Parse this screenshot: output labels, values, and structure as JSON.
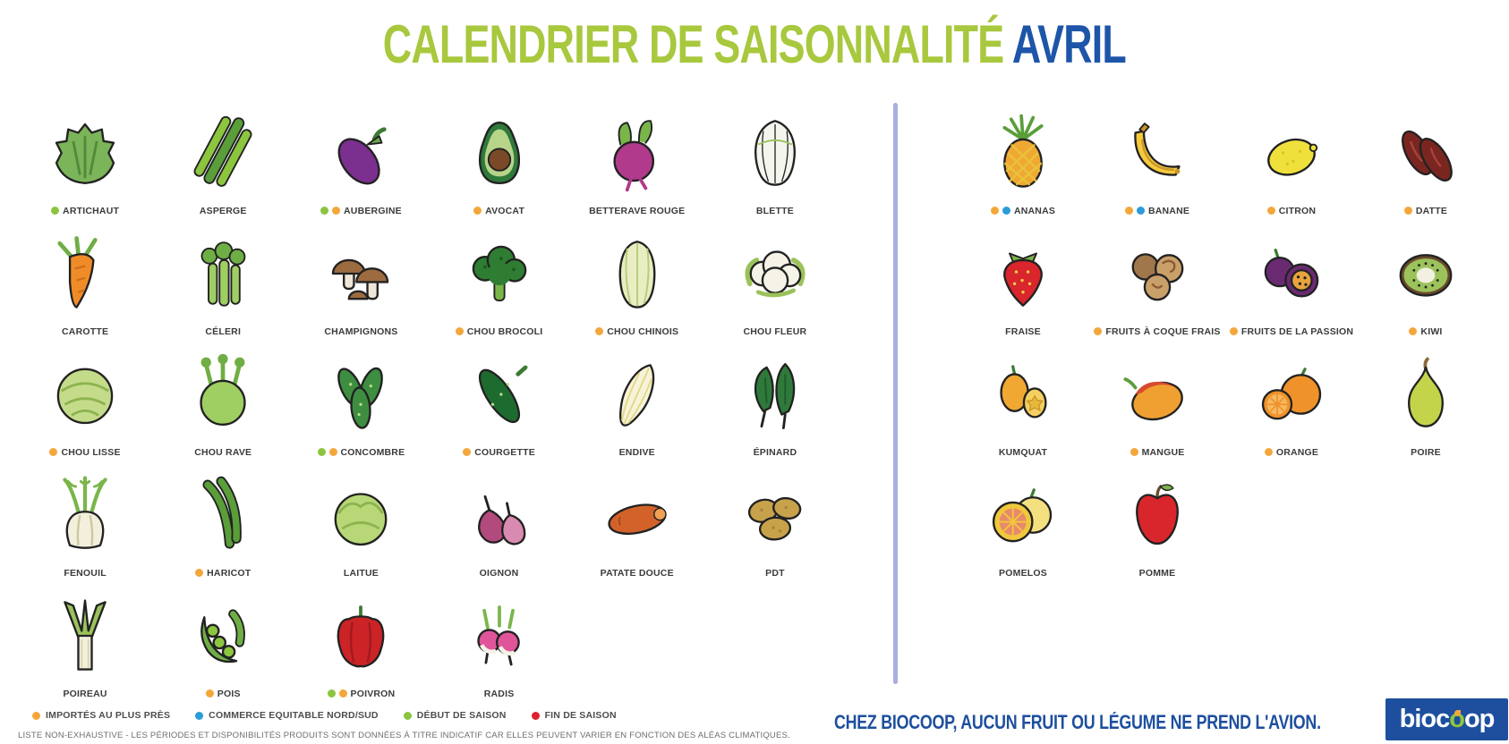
{
  "title": {
    "main": "CALENDRIER DE SAISONNALITÉ",
    "month": "AVRIL"
  },
  "colors": {
    "title_green": "#a8c83e",
    "title_blue": "#1d55a8",
    "divider": "#a9aede",
    "slogan_blue": "#1d4f9e",
    "logo_bg": "#1d4f9e",
    "logo_green": "#8dc63f",
    "dots": {
      "orange": "#f3a73a",
      "blue": "#2b9cd8",
      "green": "#8bc53f",
      "red": "#e0202e"
    }
  },
  "vegetables": [
    {
      "label": "ARTICHAUT",
      "icon": "artichoke-icon",
      "shape": "artichoke",
      "colors": [
        "#7cb45a",
        "#4e8a3a"
      ],
      "dots": [
        "green"
      ]
    },
    {
      "label": "ASPERGE",
      "icon": "asparagus-icon",
      "shape": "asparagus",
      "colors": [
        "#8cc63f",
        "#5a9e3a"
      ],
      "dots": []
    },
    {
      "label": "AUBERGINE",
      "icon": "eggplant-icon",
      "shape": "aubergine",
      "colors": [
        "#7b2f8f",
        "#6aa84f"
      ],
      "dots": [
        "green",
        "orange"
      ]
    },
    {
      "label": "AVOCAT",
      "icon": "avocado-icon",
      "shape": "avocado",
      "colors": [
        "#2f7a3b",
        "#b7d489",
        "#7a4a28"
      ],
      "dots": [
        "orange"
      ]
    },
    {
      "label": "BETTERAVE ROUGE",
      "icon": "beetroot-icon",
      "shape": "beet",
      "colors": [
        "#b13a8c",
        "#7ab54a"
      ],
      "dots": []
    },
    {
      "label": "BLETTE",
      "icon": "chard-icon",
      "shape": "chard",
      "colors": [
        "#f4f6ee",
        "#9bc25b"
      ],
      "dots": []
    },
    {
      "label": "CAROTTE",
      "icon": "carrot-icon",
      "shape": "carrot",
      "colors": [
        "#f08c28",
        "#6fae45"
      ],
      "dots": []
    },
    {
      "label": "CÉLERI",
      "icon": "celery-icon",
      "shape": "celery",
      "colors": [
        "#9fce63",
        "#6fae45"
      ],
      "dots": []
    },
    {
      "label": "CHAMPIGNONS",
      "icon": "mushrooms-icon",
      "shape": "mushrooms",
      "colors": [
        "#9c6b3f",
        "#f0e6d8"
      ],
      "dots": []
    },
    {
      "label": "CHOU BROCOLI",
      "icon": "broccoli-icon",
      "shape": "broccoli",
      "colors": [
        "#2e7d32",
        "#7ab54a"
      ],
      "dots": [
        "orange"
      ]
    },
    {
      "label": "CHOU CHINOIS",
      "icon": "chinese-cabbage-icon",
      "shape": "chouchinois",
      "colors": [
        "#e8eec2",
        "#b5cc7a"
      ],
      "dots": [
        "orange"
      ]
    },
    {
      "label": "CHOU FLEUR",
      "icon": "cauliflower-icon",
      "shape": "choufleur",
      "colors": [
        "#f5f3e8",
        "#9bc25b"
      ],
      "dots": []
    },
    {
      "label": "CHOU LISSE",
      "icon": "smooth-cabbage-icon",
      "shape": "cabbage",
      "colors": [
        "#c4dc8a",
        "#8db34f"
      ],
      "dots": [
        "orange"
      ]
    },
    {
      "label": "CHOU RAVE",
      "icon": "kohlrabi-icon",
      "shape": "chourave",
      "colors": [
        "#9fce63",
        "#6fae45"
      ],
      "dots": []
    },
    {
      "label": "CONCOMBRE",
      "icon": "cucumber-icon",
      "shape": "concombre",
      "colors": [
        "#3e8e41",
        "#bde08a"
      ],
      "dots": [
        "green",
        "orange"
      ]
    },
    {
      "label": "COURGETTE",
      "icon": "zucchini-icon",
      "shape": "courgette",
      "colors": [
        "#1e6b30",
        "#bde08a"
      ],
      "dots": [
        "orange"
      ]
    },
    {
      "label": "ENDIVE",
      "icon": "endive-icon",
      "shape": "endive",
      "colors": [
        "#f7f3da",
        "#e3d984"
      ],
      "dots": []
    },
    {
      "label": "ÉPINARD",
      "icon": "spinach-icon",
      "shape": "epinard",
      "colors": [
        "#2f7a3b",
        "#1e5a2a"
      ],
      "dots": []
    },
    {
      "label": "FENOUIL",
      "icon": "fennel-icon",
      "shape": "fenouil",
      "colors": [
        "#f2efdd",
        "#7ab54a"
      ],
      "dots": []
    },
    {
      "label": "HARICOT",
      "icon": "green-bean-icon",
      "shape": "haricot",
      "colors": [
        "#5a9e3a"
      ],
      "dots": [
        "orange"
      ]
    },
    {
      "label": "LAITUE",
      "icon": "lettuce-icon",
      "shape": "laitue",
      "colors": [
        "#b8d878",
        "#8db34f"
      ],
      "dots": []
    },
    {
      "label": "OIGNON",
      "icon": "onion-icon",
      "shape": "oignon",
      "colors": [
        "#b34a7d",
        "#d98ab0"
      ],
      "dots": []
    },
    {
      "label": "PATATE DOUCE",
      "icon": "sweet-potato-icon",
      "shape": "patatedouce",
      "colors": [
        "#d2622a",
        "#a34a1e"
      ],
      "dots": []
    },
    {
      "label": "PDT",
      "icon": "potato-icon",
      "shape": "pdt",
      "colors": [
        "#c8a24b",
        "#a88038"
      ],
      "dots": []
    },
    {
      "label": "POIREAU",
      "icon": "leek-icon",
      "shape": "poireau",
      "colors": [
        "#f2efdd",
        "#9bc25b"
      ],
      "dots": []
    },
    {
      "label": "POIS",
      "icon": "peas-icon",
      "shape": "pois",
      "colors": [
        "#6fae45",
        "#8cc63f"
      ],
      "dots": [
        "orange"
      ]
    },
    {
      "label": "POIVRON",
      "icon": "bell-pepper-icon",
      "shape": "poivron",
      "colors": [
        "#cc2327",
        "#3d7a33"
      ],
      "dots": [
        "green",
        "orange"
      ]
    },
    {
      "label": "RADIS",
      "icon": "radish-icon",
      "shape": "radis",
      "colors": [
        "#e0559a",
        "#f5f2e8",
        "#7ab54a"
      ],
      "dots": []
    }
  ],
  "fruits": [
    {
      "label": "ANANAS",
      "icon": "pineapple-icon",
      "shape": "ananas",
      "colors": [
        "#f0a832",
        "#e8c23c",
        "#5a9e3a"
      ],
      "dots": [
        "orange",
        "blue"
      ]
    },
    {
      "label": "BANANE",
      "icon": "banana-icon",
      "shape": "banane",
      "colors": [
        "#f5c93c",
        "#c9962a"
      ],
      "dots": [
        "orange",
        "blue"
      ]
    },
    {
      "label": "CITRON",
      "icon": "lemon-icon",
      "shape": "citron",
      "colors": [
        "#f0e03c",
        "#d8c428"
      ],
      "dots": [
        "orange"
      ]
    },
    {
      "label": "DATTE",
      "icon": "date-icon",
      "shape": "datte",
      "colors": [
        "#7a2620",
        "#a8433a"
      ],
      "dots": [
        "orange"
      ]
    },
    {
      "label": "FRAISE",
      "icon": "strawberry-icon",
      "shape": "fraise",
      "colors": [
        "#d8262c",
        "#7ab54a",
        "#f0d048"
      ],
      "dots": []
    },
    {
      "label": "FRUITS À COQUE FRAIS",
      "icon": "nuts-icon",
      "shape": "nuts",
      "colors": [
        "#a0764b",
        "#c9a06a",
        "#8a5a34"
      ],
      "dots": [
        "orange"
      ]
    },
    {
      "label": "FRUITS DE LA PASSION",
      "icon": "passion-fruit-icon",
      "shape": "passion",
      "colors": [
        "#6a2a72",
        "#e8a33c"
      ],
      "dots": [
        "orange"
      ]
    },
    {
      "label": "KIWI",
      "icon": "kiwi-icon",
      "shape": "kiwi",
      "colors": [
        "#6a4a2a",
        "#9bc25b",
        "#f2f0e0"
      ],
      "dots": [
        "orange"
      ]
    },
    {
      "label": "KUMQUAT",
      "icon": "kumquat-icon",
      "shape": "kumquat",
      "colors": [
        "#f0a832",
        "#f5d060"
      ],
      "dots": []
    },
    {
      "label": "MANGUE",
      "icon": "mango-icon",
      "shape": "mangue",
      "colors": [
        "#f0a030",
        "#d84a30",
        "#5a9e3a"
      ],
      "dots": [
        "orange"
      ]
    },
    {
      "label": "ORANGE",
      "icon": "orange-icon",
      "shape": "orange",
      "colors": [
        "#f0922a",
        "#f5b860"
      ],
      "dots": [
        "orange"
      ]
    },
    {
      "label": "POIRE",
      "icon": "pear-icon",
      "shape": "poire",
      "colors": [
        "#c4d44a",
        "#8a6a3a"
      ],
      "dots": []
    },
    {
      "label": "POMELOS",
      "icon": "pomelo-icon",
      "shape": "pomelos",
      "colors": [
        "#f0c83c",
        "#f5e080",
        "#e88a6a"
      ],
      "dots": []
    },
    {
      "label": "POMME",
      "icon": "apple-icon",
      "shape": "pomme",
      "colors": [
        "#d8262c",
        "#7ab54a",
        "#6a4a2a"
      ],
      "dots": []
    }
  ],
  "legend": {
    "items": [
      {
        "dot": "orange",
        "label": "IMPORTÉS AU PLUS PRÈS"
      },
      {
        "dot": "blue",
        "label": "COMMERCE EQUITABLE NORD/SUD"
      },
      {
        "dot": "green",
        "label": "DÉBUT DE SAISON"
      },
      {
        "dot": "red",
        "label": "FIN DE SAISON"
      }
    ],
    "disclaimer": "LISTE NON-EXHAUSTIVE - LES PÉRIODES ET DISPONIBILITÉS PRODUITS SONT DONNÉES À TITRE INDICATIF CAR ELLES PEUVENT VARIER EN FONCTION DES ALÉAS CLIMATIQUES."
  },
  "footer": {
    "slogan": "CHEZ BIOCOOP, AUCUN FRUIT OU LÉGUME NE PREND L'AVION.",
    "logo_text": "biocoop"
  }
}
